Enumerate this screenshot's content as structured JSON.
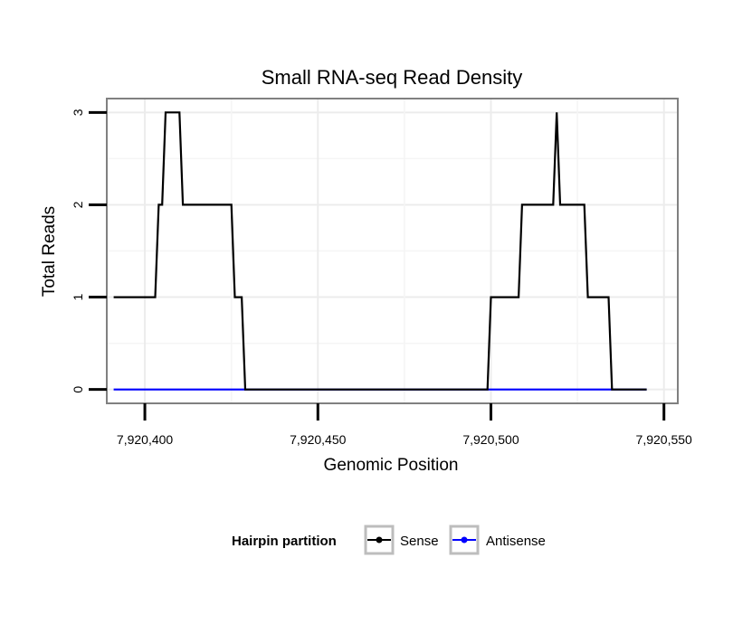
{
  "chart_data": {
    "type": "line",
    "title": "Small RNA-seq Read Density",
    "xlabel": "Genomic Position",
    "ylabel": "Total Reads",
    "xlim": [
      7920389,
      7920554
    ],
    "ylim": [
      -0.15,
      3.15
    ],
    "x_ticks": [
      7920400,
      7920450,
      7920500,
      7920550
    ],
    "x_tick_labels": [
      "7,920,400",
      "7,920,450",
      "7,920,500",
      "7,920,550"
    ],
    "y_ticks": [
      0,
      1,
      2,
      3
    ],
    "y_tick_labels": [
      "0",
      "1",
      "2",
      "3"
    ],
    "grid": true,
    "legend": {
      "title": "Hairpin partition",
      "position": "bottom"
    },
    "series": [
      {
        "name": "Sense",
        "color": "#000000",
        "points": [
          [
            7920391,
            1
          ],
          [
            7920403,
            1
          ],
          [
            7920404,
            2
          ],
          [
            7920405,
            2
          ],
          [
            7920406,
            3
          ],
          [
            7920410,
            3
          ],
          [
            7920411,
            2
          ],
          [
            7920425,
            2
          ],
          [
            7920426,
            1
          ],
          [
            7920428,
            1
          ],
          [
            7920429,
            0
          ],
          [
            7920499,
            0
          ],
          [
            7920500,
            1
          ],
          [
            7920508,
            1
          ],
          [
            7920509,
            2
          ],
          [
            7920518,
            2
          ],
          [
            7920519,
            3
          ],
          [
            7920520,
            2
          ],
          [
            7920527,
            2
          ],
          [
            7920528,
            1
          ],
          [
            7920534,
            1
          ],
          [
            7920535,
            0
          ],
          [
            7920545,
            0
          ]
        ]
      },
      {
        "name": "Antisense",
        "color": "#0000ff",
        "points": [
          [
            7920391,
            0
          ],
          [
            7920545,
            0
          ]
        ]
      }
    ]
  }
}
